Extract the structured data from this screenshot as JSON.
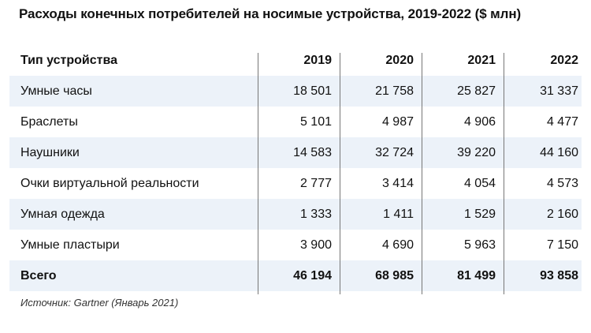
{
  "title": "Расходы конечных потребителей на носимые устройства, 2019-2022 ($ млн)",
  "source": "Источник: Gartner (Январь 2021)",
  "chart_data": {
    "type": "table",
    "title": "Расходы конечных потребителей на носимые устройства, 2019-2022 ($ млн)",
    "columns": [
      "Тип устройства",
      "2019",
      "2020",
      "2021",
      "2022"
    ],
    "rows": [
      {
        "label": "Умные часы",
        "values": [
          "18 501",
          "21 758",
          "25 827",
          "31 337"
        ]
      },
      {
        "label": "Браслеты",
        "values": [
          "5 101",
          "4 987",
          "4 906",
          "4 477"
        ]
      },
      {
        "label": "Наушники",
        "values": [
          "14 583",
          "32 724",
          "39 220",
          "44 160"
        ]
      },
      {
        "label": "Очки виртуальной реальности",
        "values": [
          "2 777",
          "3 414",
          "4 054",
          "4 573"
        ]
      },
      {
        "label": "Умная одежда",
        "values": [
          "1 333",
          "1 411",
          "1 529",
          "2 160"
        ]
      },
      {
        "label": "Умные пластыри",
        "values": [
          "3 900",
          "4 690",
          "5 963",
          "7 150"
        ]
      }
    ],
    "total": {
      "label": "Всего",
      "values": [
        "46 194",
        "68 985",
        "81 499",
        "93 858"
      ]
    }
  }
}
